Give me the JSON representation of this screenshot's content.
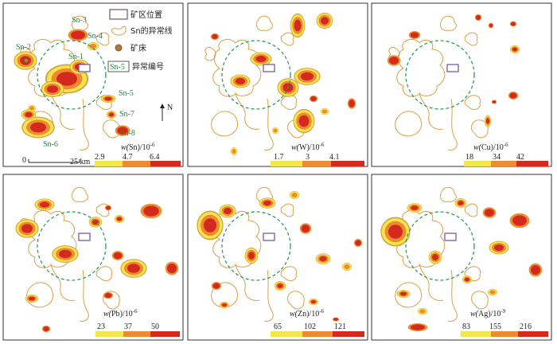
{
  "colors": {
    "high": "#d42a1e",
    "mid": "#ef8a30",
    "low": "#f3e74c",
    "outline": "#d9a146",
    "circle": "#2e9b5c",
    "mine": "#6b4fa0",
    "sn_label": "#1f8a3a",
    "frame": "#333333"
  },
  "legend": {
    "mine_location": "矿区位置",
    "sn_anomaly_line": "Sn的异常线",
    "deposit": "矿床",
    "anomaly_id": "异常编号",
    "anomaly_id_sample": "Sn-5"
  },
  "scale_bar": {
    "start": "0",
    "end": "25 km"
  },
  "north": "N",
  "anomaly_labels": [
    "Sn-1",
    "Sn-2",
    "Sn-3",
    "Sn-4",
    "Sn-5",
    "Sn-6",
    "Sn-7",
    "Sn-8"
  ],
  "panels": [
    {
      "id": "Sn",
      "prefix": "w(",
      "element": "Sn",
      "suffix": ")/10",
      "exponent": "-6",
      "ticks": [
        "2.9",
        "4.7",
        "6.4"
      ]
    },
    {
      "id": "W",
      "prefix": "w(",
      "element": "W",
      "suffix": ")/10",
      "exponent": "-6",
      "ticks": [
        "1.7",
        "3",
        "4.1"
      ]
    },
    {
      "id": "Cu",
      "prefix": "w(",
      "element": "Cu",
      "suffix": ")/10",
      "exponent": "-6",
      "ticks": [
        "18",
        "34",
        "42"
      ]
    },
    {
      "id": "Pb",
      "prefix": "w(",
      "element": "Pb",
      "suffix": ")/10",
      "exponent": "-6",
      "ticks": [
        "23",
        "37",
        "50"
      ]
    },
    {
      "id": "Zn",
      "prefix": "w(",
      "element": "Zn",
      "suffix": ")/10",
      "exponent": "-6",
      "ticks": [
        "65",
        "102",
        "121"
      ]
    },
    {
      "id": "Ag",
      "prefix": "w(",
      "element": "Ag",
      "suffix": ")/10",
      "exponent": "-9",
      "ticks": [
        "83",
        "155",
        "216"
      ]
    }
  ]
}
